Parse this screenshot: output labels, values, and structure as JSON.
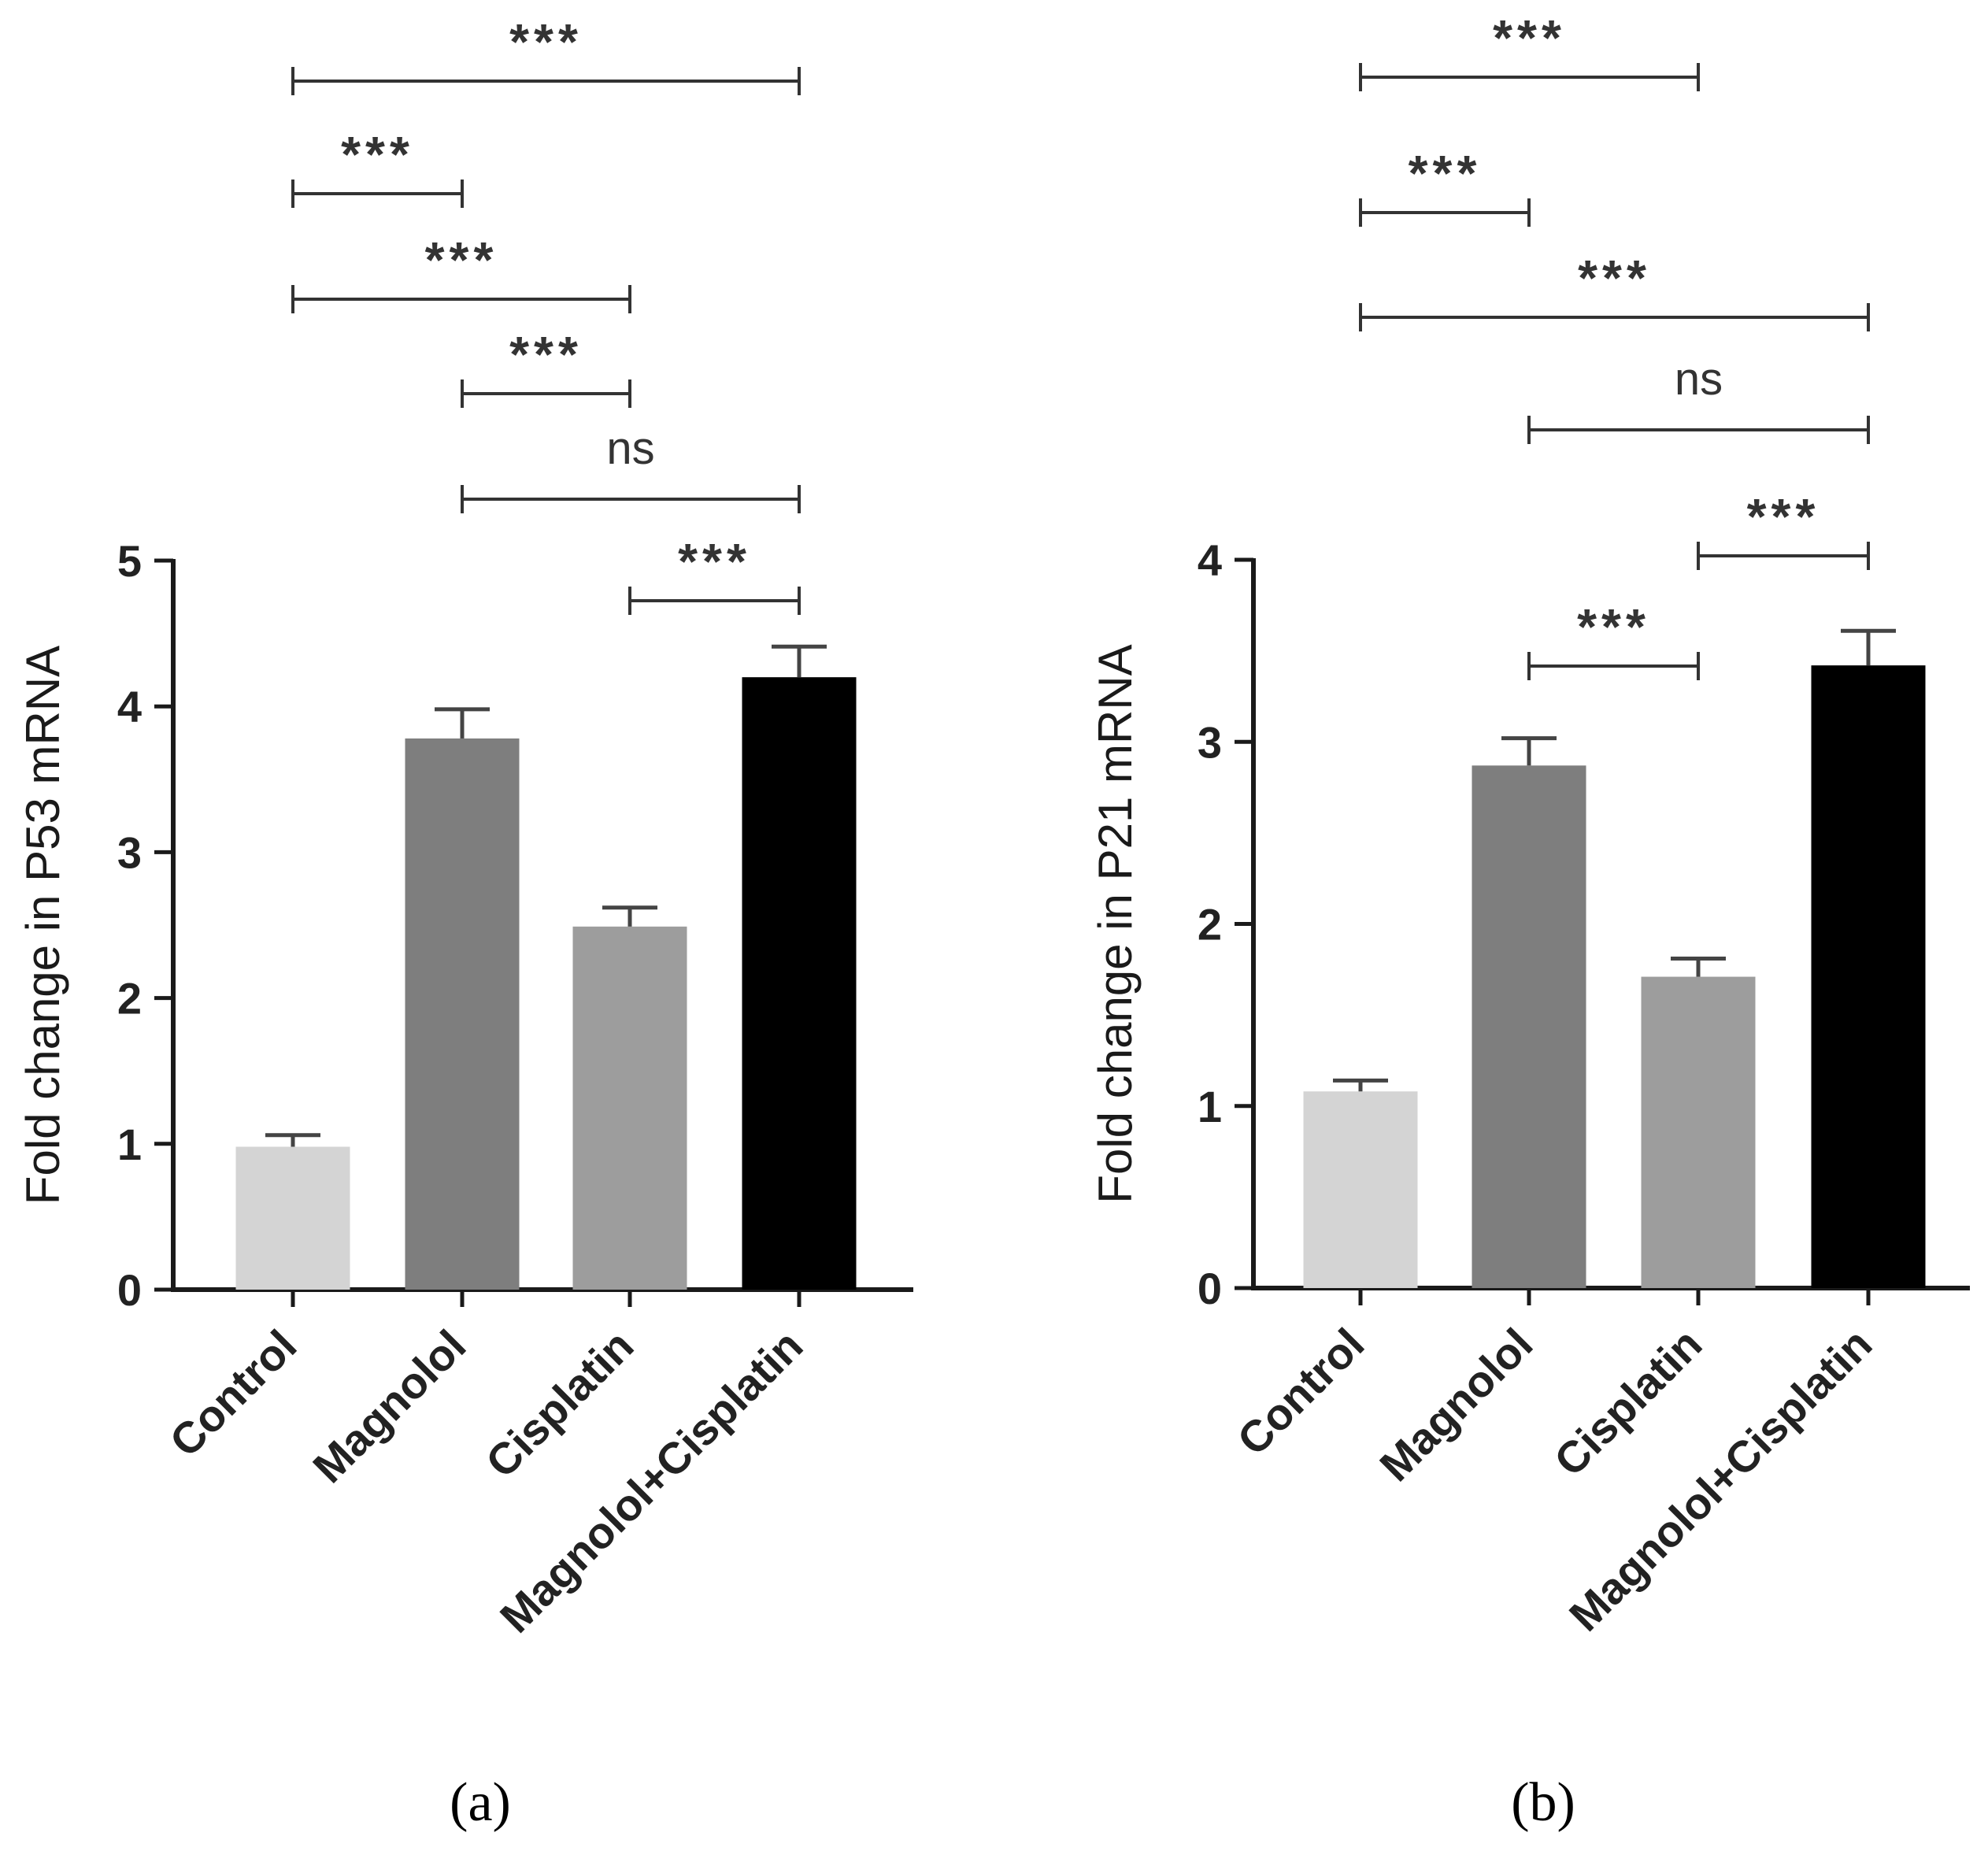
{
  "chart_data": [
    {
      "type": "bar",
      "panel_label": "(a)",
      "title": "",
      "xlabel": "",
      "ylabel": "Fold change in P53 mRNA",
      "categories": [
        "Control",
        "Magnolol",
        "Cisplatin",
        "Magnolol+Cisplatin"
      ],
      "values": [
        0.98,
        3.78,
        2.49,
        4.2
      ],
      "errors": [
        0.08,
        0.2,
        0.13,
        0.21
      ],
      "bar_colors": [
        "#d4d4d4",
        "#7e7e7e",
        "#9d9d9d",
        "#000000"
      ],
      "ylim": [
        0,
        5
      ],
      "yticks": [
        0,
        1,
        2,
        3,
        4,
        5
      ],
      "grid": false,
      "comparisons": [
        {
          "from": 0,
          "to": 3,
          "label": "***"
        },
        {
          "from": 0,
          "to": 1,
          "label": "***"
        },
        {
          "from": 0,
          "to": 2,
          "label": "***"
        },
        {
          "from": 1,
          "to": 2,
          "label": "***"
        },
        {
          "from": 1,
          "to": 3,
          "label": "ns"
        },
        {
          "from": 2,
          "to": 3,
          "label": "***"
        }
      ]
    },
    {
      "type": "bar",
      "panel_label": "(b)",
      "title": "",
      "xlabel": "",
      "ylabel": "Fold change in P21 mRNA",
      "categories": [
        "Control",
        "Magnolol",
        "Cisplatin",
        "Magnolol+Cisplatin"
      ],
      "values": [
        1.08,
        2.87,
        1.71,
        3.42
      ],
      "errors": [
        0.06,
        0.15,
        0.1,
        0.19
      ],
      "bar_colors": [
        "#d4d4d4",
        "#7e7e7e",
        "#9d9d9d",
        "#000000"
      ],
      "ylim": [
        0,
        4
      ],
      "yticks": [
        0,
        1,
        2,
        3,
        4
      ],
      "grid": false,
      "comparisons": [
        {
          "from": 0,
          "to": 2,
          "label": "***"
        },
        {
          "from": 0,
          "to": 1,
          "label": "***"
        },
        {
          "from": 0,
          "to": 3,
          "label": "***"
        },
        {
          "from": 1,
          "to": 3,
          "label": "ns"
        },
        {
          "from": 2,
          "to": 3,
          "label": "***"
        },
        {
          "from": 1,
          "to": 2,
          "label": "***"
        }
      ]
    }
  ]
}
